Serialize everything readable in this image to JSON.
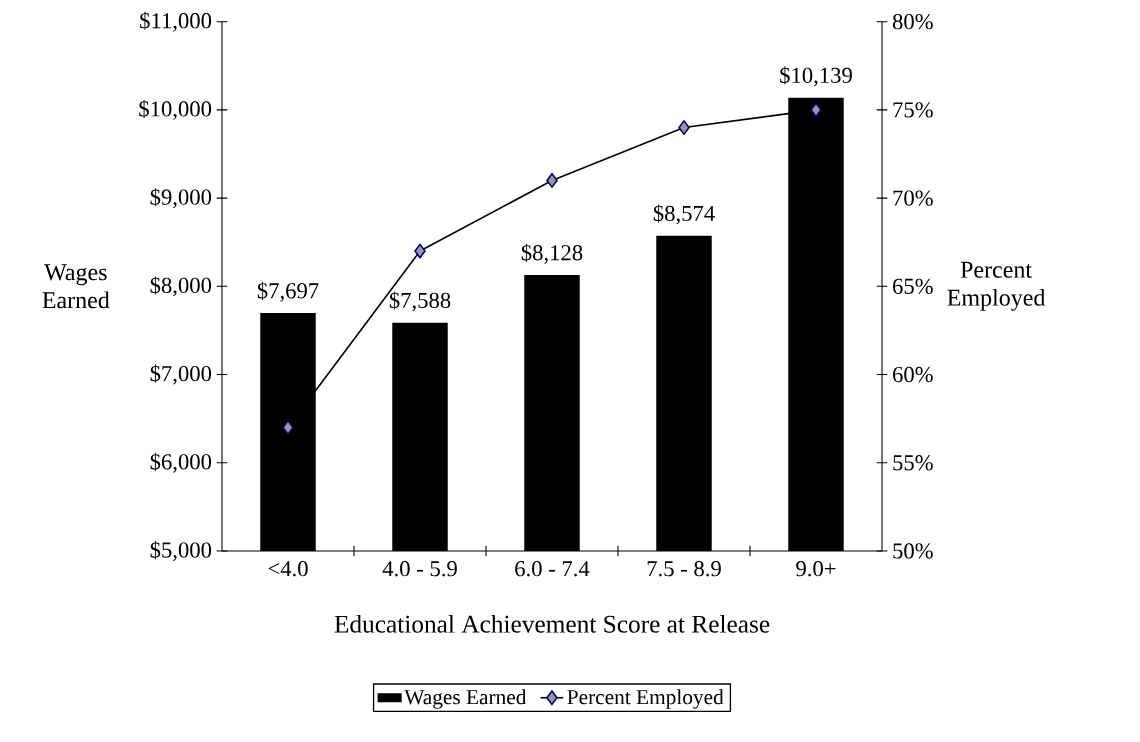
{
  "chart_data": {
    "type": "bar",
    "xlabel": "Educational Achievement Score at Release",
    "ylabel": "Wages Earned",
    "y2label": "Percent Employed",
    "categories": [
      "<4.0",
      "4.0 - 5.9",
      "6.0 - 7.4",
      "7.5 - 8.9",
      "9.0+"
    ],
    "series": [
      {
        "name": "Wages Earned",
        "color": "#000000",
        "values": [
          7697,
          7588,
          8128,
          8574,
          10139
        ],
        "value_labels": [
          "$7,697",
          "$7,588",
          "$8,128",
          "$8,574",
          "$10,139"
        ]
      },
      {
        "name": "Percent Employed",
        "type": "line",
        "axis": "y2",
        "color": "#000000",
        "values": [
          57,
          67,
          71,
          74,
          75
        ]
      }
    ],
    "marker": "diamond",
    "legend": "bottom",
    "grid": false,
    "ylim": [
      5000,
      11000
    ],
    "yticks": [
      {
        "value": 5000,
        "label": "$5,000"
      },
      {
        "value": 6000,
        "label": "$6,000"
      },
      {
        "value": 7000,
        "label": "$7,000"
      },
      {
        "value": 8000,
        "label": "$8,000"
      },
      {
        "value": 9000,
        "label": "$9,000"
      },
      {
        "value": 10000,
        "label": "$10,000"
      },
      {
        "value": 11000,
        "label": "$11,000"
      }
    ],
    "y2lim": [
      50,
      80
    ],
    "y2ticks": [
      {
        "value": 50,
        "label": "50%"
      },
      {
        "value": 55,
        "label": "55%"
      },
      {
        "value": 60,
        "label": "60%"
      },
      {
        "value": 65,
        "label": "65%"
      },
      {
        "value": 70,
        "label": "70%"
      },
      {
        "value": 75,
        "label": "75%"
      },
      {
        "value": 80,
        "label": "80%"
      }
    ]
  }
}
